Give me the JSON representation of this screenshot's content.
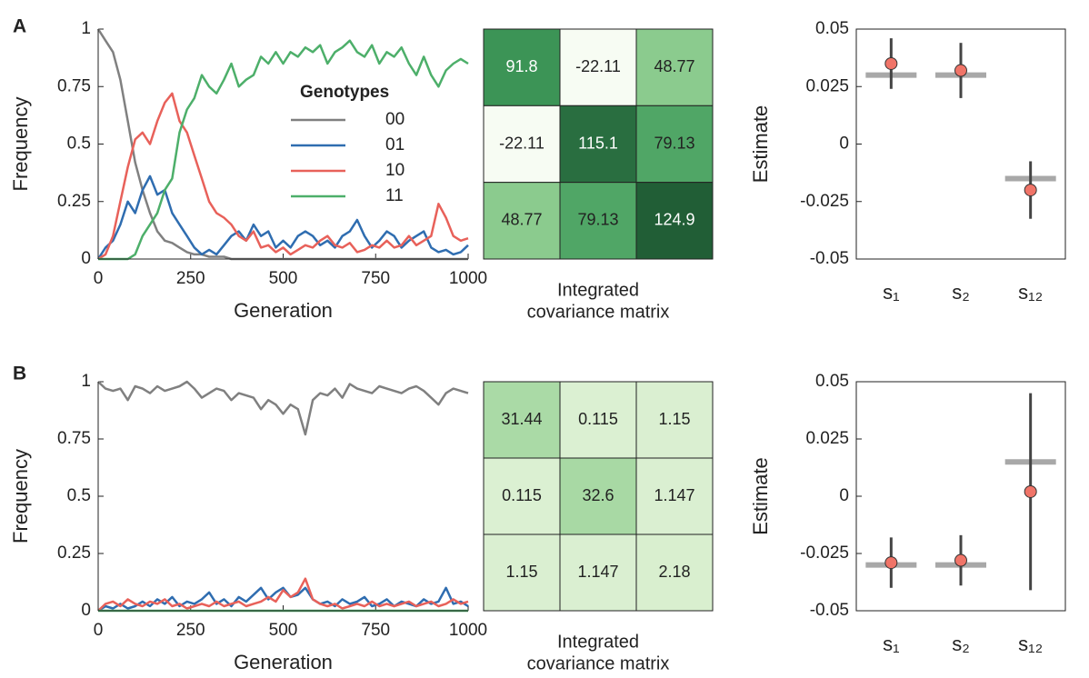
{
  "panel_labels": [
    "A",
    "B"
  ],
  "chart_data": [
    {
      "type": "line",
      "xlabel": "Generation",
      "ylabel": "Frequency",
      "xlim": [
        0,
        1000
      ],
      "xticks": [
        0,
        250,
        500,
        750,
        1000
      ],
      "ylim": [
        0,
        1
      ],
      "yticks": [
        0,
        0.25,
        0.5,
        0.75,
        1
      ],
      "x": [
        0,
        20,
        40,
        60,
        80,
        100,
        120,
        140,
        160,
        180,
        200,
        220,
        240,
        260,
        280,
        300,
        320,
        340,
        360,
        380,
        400,
        420,
        440,
        460,
        480,
        500,
        520,
        540,
        560,
        580,
        600,
        620,
        640,
        660,
        680,
        700,
        720,
        740,
        760,
        780,
        800,
        820,
        840,
        860,
        880,
        900,
        920,
        940,
        960,
        980,
        1000
      ],
      "legend_title": "Genotypes",
      "series": [
        {
          "name": "00",
          "color": "#808080",
          "values": [
            1,
            0.95,
            0.9,
            0.78,
            0.6,
            0.42,
            0.3,
            0.2,
            0.12,
            0.08,
            0.07,
            0.05,
            0.03,
            0.02,
            0.02,
            0.01,
            0.01,
            0.01,
            0,
            0,
            0,
            0,
            0,
            0,
            0,
            0,
            0,
            0,
            0,
            0,
            0,
            0,
            0,
            0,
            0,
            0,
            0,
            0,
            0,
            0,
            0,
            0,
            0,
            0,
            0,
            0,
            0,
            0,
            0,
            0,
            0
          ]
        },
        {
          "name": "01",
          "color": "#2f6db0",
          "values": [
            0,
            0.05,
            0.08,
            0.15,
            0.25,
            0.2,
            0.3,
            0.36,
            0.28,
            0.3,
            0.2,
            0.15,
            0.1,
            0.05,
            0.02,
            0.04,
            0.02,
            0.06,
            0.1,
            0.12,
            0.08,
            0.15,
            0.1,
            0.12,
            0.05,
            0.08,
            0.05,
            0.1,
            0.12,
            0.1,
            0.06,
            0.08,
            0.05,
            0.1,
            0.12,
            0.17,
            0.1,
            0.05,
            0.08,
            0.12,
            0.1,
            0.05,
            0.08,
            0.1,
            0.12,
            0.05,
            0.03,
            0.04,
            0.02,
            0.03,
            0.06
          ]
        },
        {
          "name": "10",
          "color": "#e8615a",
          "values": [
            0,
            0.02,
            0.1,
            0.25,
            0.4,
            0.52,
            0.55,
            0.5,
            0.6,
            0.68,
            0.72,
            0.6,
            0.55,
            0.45,
            0.35,
            0.25,
            0.2,
            0.18,
            0.15,
            0.1,
            0.08,
            0.12,
            0.05,
            0.06,
            0.03,
            0.05,
            0.02,
            0.04,
            0.06,
            0.05,
            0.08,
            0.1,
            0.06,
            0.05,
            0.07,
            0.03,
            0.04,
            0.06,
            0.05,
            0.08,
            0.05,
            0.06,
            0.1,
            0.06,
            0.08,
            0.1,
            0.24,
            0.18,
            0.1,
            0.08,
            0.09
          ]
        },
        {
          "name": "11",
          "color": "#4daf6a",
          "values": [
            0,
            0,
            0,
            0,
            0,
            0.02,
            0.1,
            0.15,
            0.2,
            0.3,
            0.35,
            0.55,
            0.65,
            0.7,
            0.8,
            0.75,
            0.72,
            0.78,
            0.85,
            0.75,
            0.78,
            0.8,
            0.88,
            0.85,
            0.9,
            0.85,
            0.9,
            0.88,
            0.92,
            0.9,
            0.93,
            0.85,
            0.9,
            0.92,
            0.95,
            0.9,
            0.88,
            0.93,
            0.85,
            0.9,
            0.88,
            0.92,
            0.85,
            0.8,
            0.88,
            0.8,
            0.75,
            0.82,
            0.85,
            0.87,
            0.85
          ]
        }
      ]
    },
    {
      "type": "heatmap",
      "xlabel": [
        "Integrated",
        "covariance matrix"
      ],
      "values": [
        [
          91.8,
          -22.11,
          48.77
        ],
        [
          -22.11,
          115.1,
          79.13
        ],
        [
          48.77,
          79.13,
          124.9
        ]
      ],
      "clim": [
        -22.11,
        124.9
      ],
      "colors": [
        "#f7fcf3",
        "#c9e8bd",
        "#86c98a",
        "#3f9a5a",
        "#215e36"
      ]
    },
    {
      "type": "errorbar",
      "ylabel": "Estimate",
      "categories": [
        "s₁",
        "s₂",
        "s₁₂"
      ],
      "ylim": [
        -0.05,
        0.05
      ],
      "yticks": [
        0.05,
        0.025,
        0,
        -0.025,
        -0.05
      ],
      "values": [
        0.035,
        0.032,
        -0.02
      ],
      "errors": [
        0.011,
        0.012,
        0.0125
      ],
      "true_values": [
        0.03,
        0.03,
        -0.015
      ],
      "color": "#f07468",
      "bar_color": "#444444",
      "true_color": "#a8a8a8"
    },
    {
      "type": "line",
      "xlabel": "Generation",
      "ylabel": "Frequency",
      "xlim": [
        0,
        1000
      ],
      "xticks": [
        0,
        250,
        500,
        750,
        1000
      ],
      "ylim": [
        0,
        1
      ],
      "yticks": [
        0,
        0.25,
        0.5,
        0.75,
        1
      ],
      "x": [
        0,
        20,
        40,
        60,
        80,
        100,
        120,
        140,
        160,
        180,
        200,
        220,
        240,
        260,
        280,
        300,
        320,
        340,
        360,
        380,
        400,
        420,
        440,
        460,
        480,
        500,
        520,
        540,
        560,
        580,
        600,
        620,
        640,
        660,
        680,
        700,
        720,
        740,
        760,
        780,
        800,
        820,
        840,
        860,
        880,
        900,
        920,
        940,
        960,
        980,
        1000
      ],
      "series": [
        {
          "color": "#808080",
          "values": [
            1,
            0.97,
            0.96,
            0.97,
            0.92,
            0.98,
            0.97,
            0.95,
            0.98,
            0.96,
            0.97,
            0.98,
            1,
            0.97,
            0.93,
            0.95,
            0.97,
            0.96,
            0.92,
            0.95,
            0.94,
            0.93,
            0.88,
            0.92,
            0.9,
            0.86,
            0.9,
            0.88,
            0.77,
            0.92,
            0.95,
            0.94,
            0.97,
            0.93,
            0.99,
            0.97,
            0.96,
            0.95,
            0.98,
            0.97,
            0.96,
            0.95,
            0.97,
            0.98,
            0.96,
            0.93,
            0.9,
            0.95,
            0.97,
            0.96,
            0.95
          ]
        },
        {
          "color": "#2f6db0",
          "values": [
            0,
            0.02,
            0.01,
            0.03,
            0.01,
            0.02,
            0.04,
            0.02,
            0.05,
            0.03,
            0.06,
            0.02,
            0.04,
            0.03,
            0.05,
            0.08,
            0.03,
            0.05,
            0.02,
            0.06,
            0.04,
            0.07,
            0.1,
            0.05,
            0.08,
            0.1,
            0.06,
            0.07,
            0.1,
            0.05,
            0.03,
            0.04,
            0.02,
            0.05,
            0.03,
            0.04,
            0.06,
            0.02,
            0.03,
            0.05,
            0.02,
            0.04,
            0.03,
            0.02,
            0.05,
            0.03,
            0.04,
            0.1,
            0.03,
            0.04,
            0.02
          ]
        },
        {
          "color": "#e8615a",
          "values": [
            0,
            0.03,
            0.04,
            0.02,
            0.05,
            0.03,
            0.02,
            0.04,
            0.03,
            0.05,
            0.02,
            0.03,
            0.01,
            0.02,
            0.03,
            0.02,
            0.04,
            0.02,
            0.03,
            0.04,
            0.02,
            0.03,
            0.04,
            0.06,
            0.04,
            0.09,
            0.06,
            0.08,
            0.14,
            0.05,
            0.03,
            0.02,
            0.03,
            0.01,
            0.02,
            0.03,
            0.02,
            0.04,
            0.02,
            0.03,
            0.02,
            0.03,
            0.04,
            0.02,
            0.03,
            0.04,
            0.02,
            0.03,
            0.05,
            0.03,
            0.04
          ]
        },
        {
          "color": "#4daf6a",
          "values": [
            0,
            0,
            0,
            0,
            0,
            0,
            0,
            0,
            0,
            0,
            0,
            0,
            0,
            0,
            0,
            0,
            0,
            0,
            0,
            0,
            0,
            0,
            0,
            0,
            0,
            0,
            0,
            0,
            0,
            0,
            0,
            0,
            0,
            0,
            0,
            0,
            0,
            0,
            0,
            0,
            0,
            0,
            0,
            0,
            0,
            0,
            0,
            0,
            0,
            0,
            0
          ]
        }
      ]
    },
    {
      "type": "heatmap",
      "xlabel": [
        "Integrated",
        "covariance matrix"
      ],
      "values": [
        [
          31.44,
          0.115,
          1.15
        ],
        [
          0.115,
          32.6,
          1.147
        ],
        [
          1.15,
          1.147,
          2.18
        ]
      ],
      "clim": [
        -22.11,
        124.9
      ],
      "colors": [
        "#f7fcf3",
        "#c9e8bd",
        "#86c98a",
        "#3f9a5a",
        "#215e36"
      ]
    },
    {
      "type": "errorbar",
      "ylabel": "Estimate",
      "categories": [
        "s₁",
        "s₂",
        "s₁₂"
      ],
      "ylim": [
        -0.05,
        0.05
      ],
      "yticks": [
        0.05,
        0.025,
        0,
        -0.025,
        -0.05
      ],
      "values": [
        -0.029,
        -0.028,
        0.002
      ],
      "errors": [
        0.011,
        0.011,
        0.043
      ],
      "true_values": [
        -0.03,
        -0.03,
        0.015
      ],
      "color": "#f07468",
      "bar_color": "#444444",
      "true_color": "#a8a8a8"
    }
  ]
}
